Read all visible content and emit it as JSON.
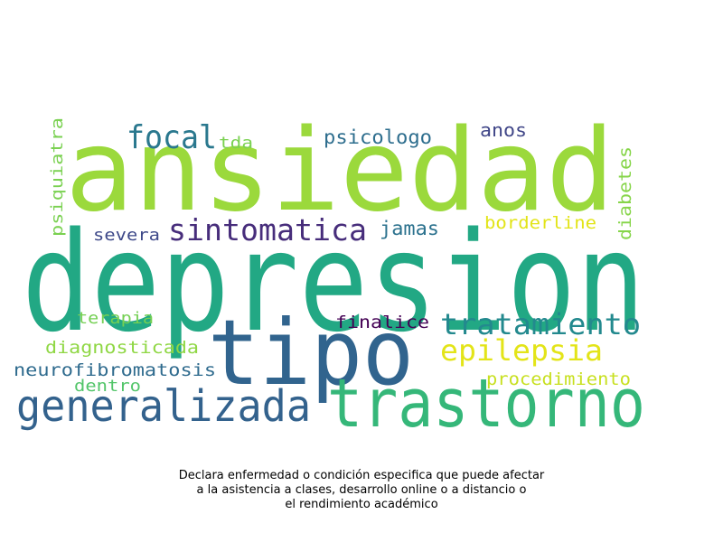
{
  "words": [
    {
      "text": "ansiedad",
      "color": "#9bd93c"
    },
    {
      "text": "depresion",
      "color": "#22a884"
    },
    {
      "text": "tipo",
      "color": "#31648e"
    },
    {
      "text": "trastorno",
      "color": "#35b779"
    },
    {
      "text": "generalizada",
      "color": "#33628d"
    },
    {
      "text": "sintomatica",
      "color": "#472d7b"
    },
    {
      "text": "focal",
      "color": "#2a788e"
    },
    {
      "text": "tratamiento",
      "color": "#23898e"
    },
    {
      "text": "epilepsia",
      "color": "#e3e418"
    },
    {
      "text": "psicologo",
      "color": "#2e6e8e"
    },
    {
      "text": "tda",
      "color": "#7ad151"
    },
    {
      "text": "anos",
      "color": "#404688"
    },
    {
      "text": "psiquiatra",
      "color": "#7ad151"
    },
    {
      "text": "diabetes",
      "color": "#86d549"
    },
    {
      "text": "borderline",
      "color": "#e2e418"
    },
    {
      "text": "jamas",
      "color": "#2c728e"
    },
    {
      "text": "severa",
      "color": "#3e4989"
    },
    {
      "text": "terapia",
      "color": "#75d054"
    },
    {
      "text": "finalice",
      "color": "#440154"
    },
    {
      "text": "diagnosticada",
      "color": "#8fd744"
    },
    {
      "text": "neurofibromatosis",
      "color": "#2f6b8e"
    },
    {
      "text": "dentro",
      "color": "#52c569"
    },
    {
      "text": "procedimiento",
      "color": "#c8e020"
    }
  ],
  "caption": {
    "line1": "Declara enfermedad o condición especifica que puede afectar",
    "line2": "a la asistencia a clases, desarrollo online o a distancio o",
    "line3": "el rendimiento académico"
  }
}
